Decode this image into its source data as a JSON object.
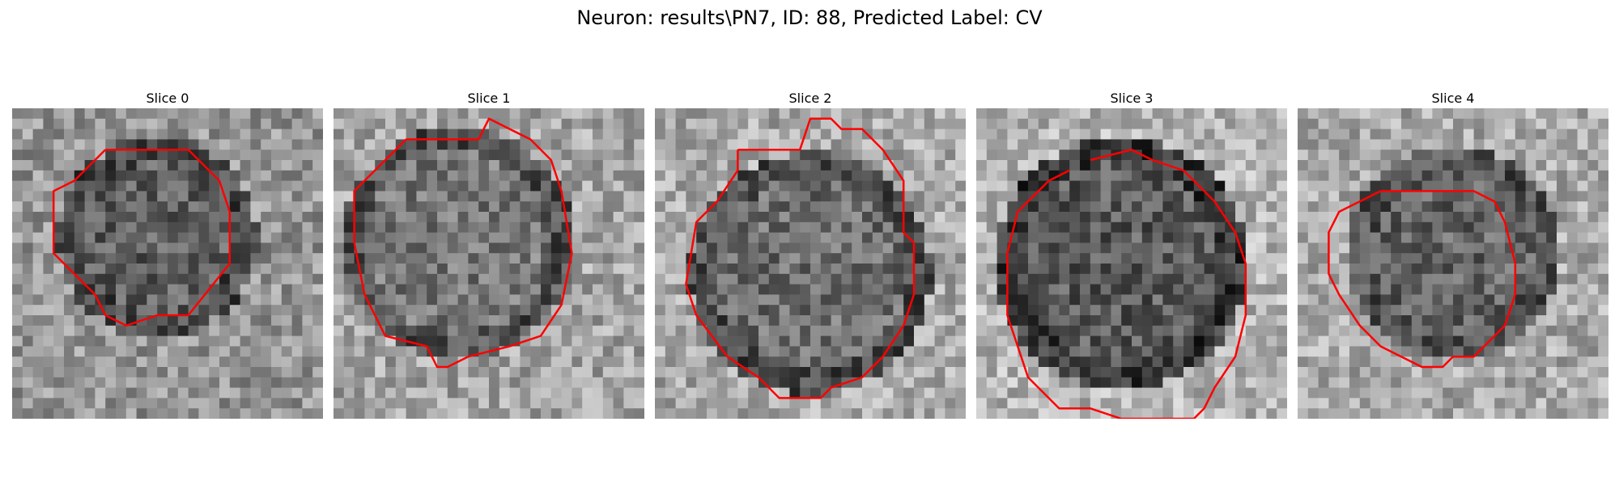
{
  "figure": {
    "title": "Neuron: results\\PN7, ID: 88, Predicted Label: CV"
  },
  "panels": [
    {
      "title": "Slice 0"
    },
    {
      "title": "Slice 1"
    },
    {
      "title": "Slice 2"
    },
    {
      "title": "Slice 3"
    },
    {
      "title": "Slice 4"
    }
  ],
  "colors": {
    "contour": "#ff0000",
    "background": "#ffffff"
  }
}
